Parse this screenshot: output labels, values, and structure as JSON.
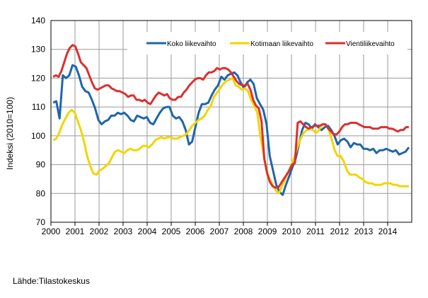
{
  "chart_data": {
    "type": "line",
    "title": "",
    "xlabel": "",
    "ylabel": "Indeksi (2010=100)",
    "ylim": [
      70,
      140
    ],
    "xlim": [
      2000,
      2015
    ],
    "yticks": [
      70,
      80,
      90,
      100,
      110,
      120,
      130,
      140
    ],
    "xticks": [
      "2000",
      "2001",
      "2002",
      "2003",
      "2004",
      "2005",
      "2006",
      "2007",
      "2008",
      "2009",
      "2010",
      "2011",
      "2012",
      "2013",
      "2014"
    ],
    "grid": true,
    "legend_position": "top",
    "series": [
      {
        "name": "Koko liikevaihto",
        "color": "#1f65ad",
        "x_start": 2000.09,
        "x_end": 2014.88,
        "values": [
          111.5,
          112,
          106,
          121,
          120,
          121,
          124.5,
          124,
          121,
          117,
          115.5,
          115,
          112.5,
          109.5,
          105.5,
          104,
          105,
          105.5,
          107,
          107,
          108,
          107.5,
          108,
          107,
          105.5,
          105,
          107,
          106.5,
          106,
          106.5,
          104.5,
          104,
          106,
          108,
          109.5,
          110,
          110,
          107,
          106,
          106.5,
          105,
          102,
          97,
          98,
          103,
          108,
          111,
          111,
          111.5,
          114,
          116,
          117.5,
          120.5,
          119.5,
          121,
          121.5,
          122,
          121,
          118.5,
          116.5,
          118.5,
          119.5,
          118,
          113,
          111,
          109,
          104,
          93,
          88,
          83,
          80.5,
          79.5,
          83,
          86,
          89,
          92,
          97,
          102,
          104.5,
          104,
          102.5,
          104,
          103,
          102,
          103,
          103.5,
          102,
          100,
          97,
          98.5,
          99,
          98,
          96,
          97.5,
          97,
          97,
          95.5,
          95.5,
          95,
          95.5,
          94,
          95,
          95,
          95.5,
          95,
          94.5,
          95,
          93.5,
          94,
          94.5,
          96
        ]
      },
      {
        "name": "Kotimaan liikevaihto",
        "color": "#f2d500",
        "x_start": 2000.09,
        "x_end": 2014.88,
        "values": [
          98.5,
          99,
          101,
          104,
          106,
          108,
          109,
          108,
          105,
          102,
          98,
          93,
          89.5,
          87,
          86.5,
          88,
          88.5,
          89.5,
          90.5,
          92.5,
          94.5,
          95,
          94.5,
          94,
          95,
          95.5,
          95,
          95,
          95.5,
          96.5,
          96.5,
          96,
          97,
          98.5,
          99,
          99.5,
          99,
          99.5,
          99.5,
          99,
          99,
          99.5,
          100,
          100.5,
          102,
          103.5,
          104.5,
          105.5,
          106,
          107,
          109,
          110.5,
          113.5,
          115,
          116.5,
          118,
          119,
          119.5,
          120,
          117.5,
          117,
          116,
          116.5,
          115.5,
          112.5,
          110.5,
          108,
          100,
          94,
          88,
          85,
          83,
          81,
          80,
          82.5,
          85,
          87.5,
          90,
          92.5,
          96,
          99,
          101,
          102,
          102.5,
          102,
          101,
          102,
          104,
          104,
          102.5,
          99,
          95,
          93,
          93,
          91,
          88,
          86.5,
          86.5,
          86.5,
          85.5,
          85,
          84,
          83.5,
          83.5,
          83,
          83,
          83,
          83.5,
          83.5,
          83.5,
          83,
          83,
          82.5,
          82.5,
          82.5,
          82.5
        ]
      },
      {
        "name": "Vientiliikevaihto",
        "color": "#dc2f2f",
        "x_start": 2000.09,
        "x_end": 2014.88,
        "values": [
          120.5,
          121,
          120.5,
          122.5,
          125.5,
          128.5,
          130.5,
          131.5,
          131,
          128.5,
          125.5,
          124.5,
          123.5,
          121,
          118.5,
          116.5,
          116,
          116.5,
          117,
          117.5,
          117.5,
          116.5,
          116,
          115.5,
          115.5,
          115,
          114.5,
          113.5,
          114,
          114,
          112.5,
          112.5,
          112,
          112.5,
          111.5,
          111,
          112.5,
          114,
          115,
          114.5,
          114,
          114.5,
          113,
          112.5,
          112.5,
          113.5,
          113.5,
          115,
          116,
          117.5,
          118.5,
          119.5,
          120,
          120,
          119.5,
          121,
          122,
          122,
          122.5,
          123.5,
          123,
          123.5,
          123.5,
          123,
          122,
          120.5,
          119,
          118,
          117.5,
          117.5,
          118,
          116,
          112.5,
          110.5,
          109.5,
          105,
          92,
          87,
          84,
          82.5,
          82,
          82,
          83.5,
          85,
          86.5,
          88,
          90,
          90.5,
          104.5,
          105,
          104,
          103,
          102.5,
          103,
          103.5,
          103.5,
          103.5,
          104,
          104,
          102.5,
          101.5,
          100.5,
          100.5,
          101.5,
          103,
          104,
          104,
          104.5,
          104.5,
          104.5,
          104,
          103.5,
          103,
          103,
          103,
          102.5,
          102.5,
          102.5,
          103,
          103,
          103,
          102.5,
          102.5,
          102,
          101.5,
          102,
          102,
          103,
          103
        ]
      }
    ]
  },
  "source": "Lähde:Tilastokeskus"
}
